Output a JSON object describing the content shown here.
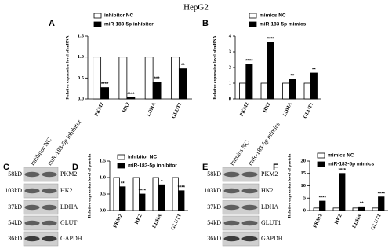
{
  "title": "HepG2",
  "chart_data": [
    {
      "type": "bar",
      "panel": "A",
      "ylabel": "Relative expression level of mRNA",
      "categories": [
        "PKM2",
        "HK2",
        "LDHA",
        "GLUT1"
      ],
      "series": [
        {
          "name": "inhibitor NC",
          "color": "#ffffff",
          "values": [
            1,
            1,
            1,
            1
          ]
        },
        {
          "name": "miR-183-5p inhibitor",
          "color": "#000000",
          "values": [
            0.27,
            0.03,
            0.4,
            0.72
          ]
        }
      ],
      "annotations": [
        "****",
        "****",
        "***",
        "**"
      ],
      "ylim": [
        0,
        1.5
      ],
      "yticks": [
        {
          "value": 0,
          "label": "0.0"
        },
        {
          "value": 0.5,
          "label": "0.5"
        },
        {
          "value": 1,
          "label": "1.0"
        },
        {
          "value": 1.5,
          "label": "1.5"
        }
      ]
    },
    {
      "type": "bar",
      "panel": "B",
      "ylabel": "Relative expression level of mRNA",
      "categories": [
        "PKM2",
        "HK2",
        "LDHA",
        "GLUT1"
      ],
      "series": [
        {
          "name": "mimics NC",
          "color": "#ffffff",
          "values": [
            1,
            1,
            1,
            1
          ]
        },
        {
          "name": "miR-183-5p mimics",
          "color": "#000000",
          "values": [
            2.2,
            3.6,
            1.25,
            1.65
          ]
        }
      ],
      "annotations": [
        "****",
        "****",
        "**",
        "**"
      ],
      "ylim": [
        0,
        4
      ],
      "yticks": [
        0,
        1,
        2,
        3,
        4
      ]
    },
    {
      "type": "bar",
      "panel": "D",
      "ylabel": "Relative expression level of protein",
      "categories": [
        "PKM2",
        "HK2",
        "LDHA",
        "GLUT1"
      ],
      "series": [
        {
          "name": "inhibitor NC",
          "color": "#ffffff",
          "values": [
            1,
            1,
            1,
            1
          ]
        },
        {
          "name": "miR-183-5p inhibitor",
          "color": "#000000",
          "values": [
            0.72,
            0.5,
            0.78,
            0.6
          ]
        }
      ],
      "annotations": [
        "**",
        "****",
        "*",
        "****"
      ],
      "ylim": [
        0,
        1.5
      ],
      "yticks": [
        {
          "value": 0,
          "label": "0.0"
        },
        {
          "value": 0.5,
          "label": "0.5"
        },
        {
          "value": 1,
          "label": "1.0"
        },
        {
          "value": 1.5,
          "label": "1.5"
        }
      ]
    },
    {
      "type": "bar",
      "panel": "F",
      "ylabel": "Relative expression level of protein",
      "categories": [
        "PKM2",
        "HK2",
        "LDHA",
        "GLUT1"
      ],
      "series": [
        {
          "name": "mimics NC",
          "color": "#ffffff",
          "values": [
            1,
            1,
            1,
            1
          ]
        },
        {
          "name": "miR-183-5p mimics",
          "color": "#000000",
          "values": [
            3.8,
            15,
            1.5,
            5.5
          ]
        }
      ],
      "annotations": [
        "****",
        "****",
        "**",
        "****"
      ],
      "ylim": [
        0,
        20
      ],
      "yticks": [
        0,
        5,
        10,
        15,
        20
      ]
    }
  ],
  "blots": [
    {
      "panel": "C",
      "columns": [
        "inhibitor NC",
        "miR-183-5p inhibitor"
      ],
      "sizes": [
        "58kD",
        "103kD",
        "37kD",
        "54kD",
        "36kD"
      ],
      "proteins": [
        "PKM2",
        "HK2",
        "LDHA",
        "GLUT",
        "GAPDH"
      ]
    },
    {
      "panel": "E",
      "columns": [
        "mimics NC",
        "miR-183-5p mimics"
      ],
      "sizes": [
        "58kD",
        "103kD",
        "37kD",
        "54kD",
        "36kD"
      ],
      "proteins": [
        "PKM2",
        "HK2",
        "LDHA",
        "GLUT1",
        "GAPDH"
      ]
    }
  ]
}
